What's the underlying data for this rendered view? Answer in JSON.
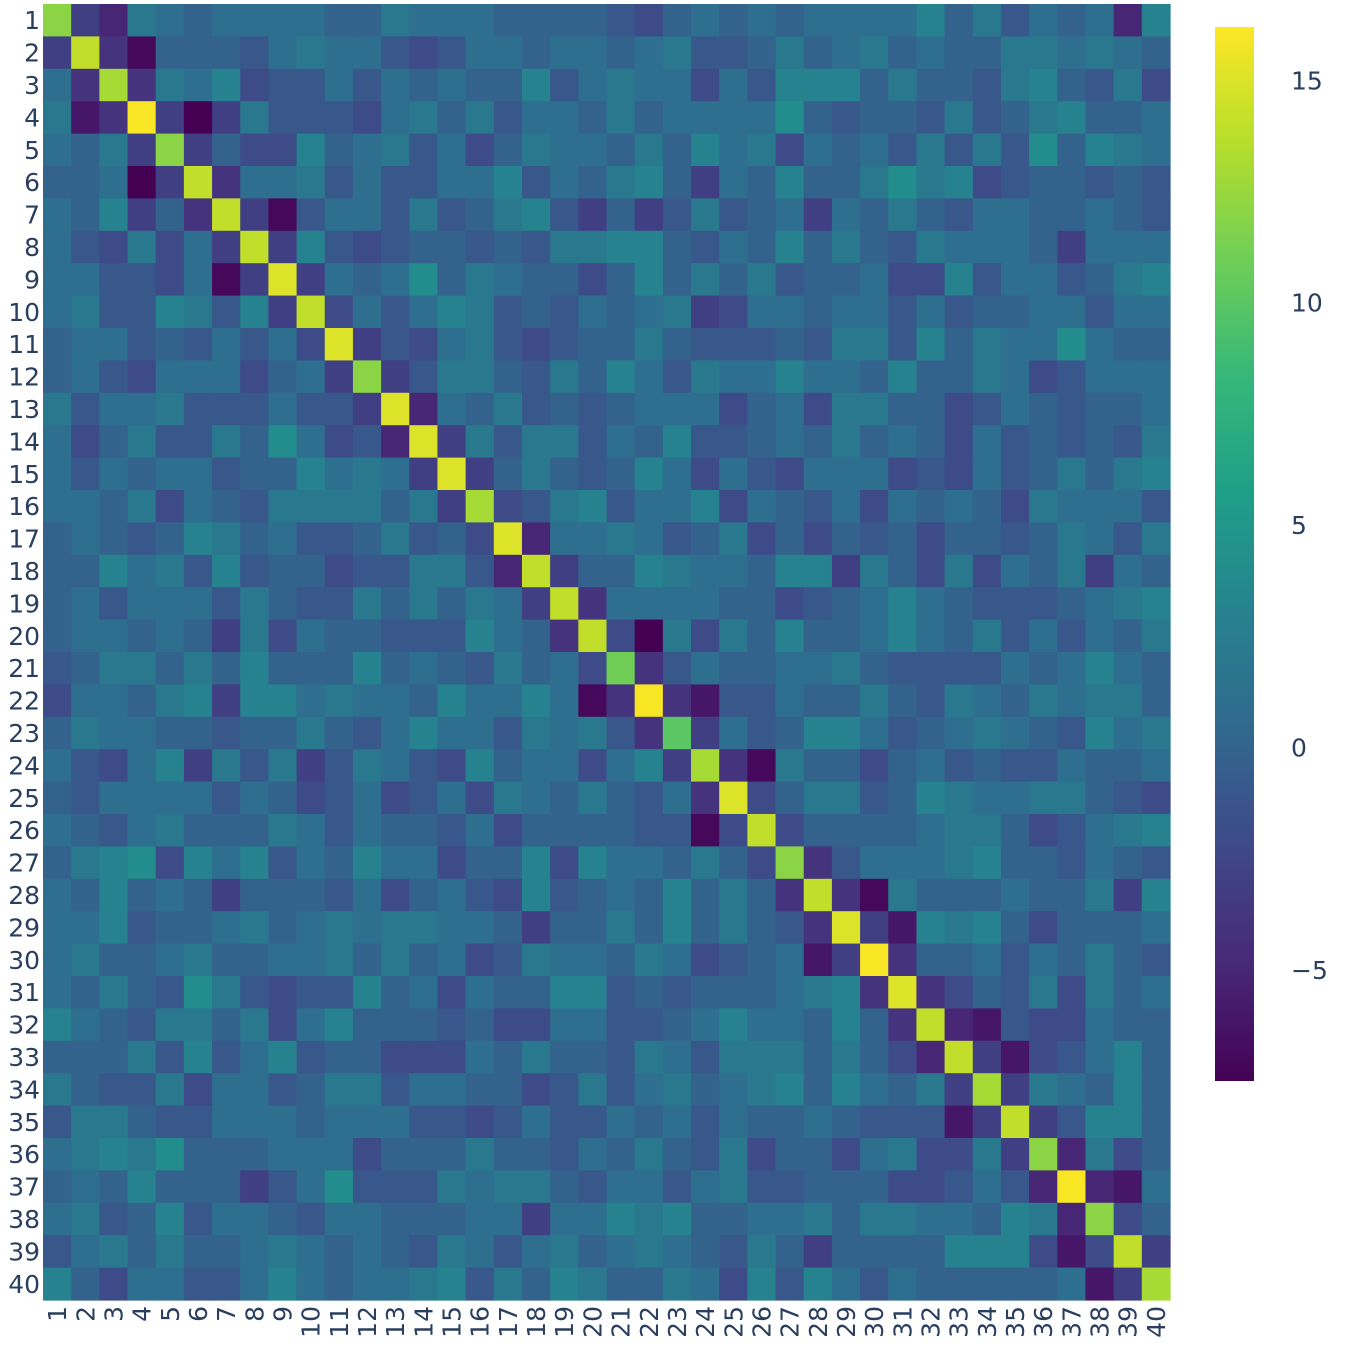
{
  "chart_data": {
    "type": "heatmap",
    "title": "",
    "xlabel": "",
    "ylabel": "",
    "x": [
      "1",
      "2",
      "3",
      "4",
      "5",
      "6",
      "7",
      "8",
      "9",
      "10",
      "11",
      "12",
      "13",
      "14",
      "15",
      "16",
      "17",
      "18",
      "19",
      "20",
      "21",
      "22",
      "23",
      "24",
      "25",
      "26",
      "27",
      "28",
      "29",
      "30",
      "31",
      "32",
      "33",
      "34",
      "35",
      "36",
      "37",
      "38",
      "39",
      "40"
    ],
    "y": [
      "1",
      "2",
      "3",
      "4",
      "5",
      "6",
      "7",
      "8",
      "9",
      "10",
      "11",
      "12",
      "13",
      "14",
      "15",
      "16",
      "17",
      "18",
      "19",
      "20",
      "21",
      "22",
      "23",
      "24",
      "25",
      "26",
      "27",
      "28",
      "29",
      "30",
      "31",
      "32",
      "33",
      "34",
      "35",
      "36",
      "37",
      "38",
      "39",
      "40"
    ],
    "colorscale": "Viridis",
    "zmin": -7.5,
    "zmax": 16.2,
    "colorbar_ticks": [
      15,
      10,
      5,
      0,
      -5
    ],
    "colorbar_tick_labels": [
      "15",
      "10",
      "5",
      "0",
      "−5"
    ],
    "diagonal": [
      12,
      14,
      13,
      16,
      12,
      14,
      14,
      14,
      15,
      14,
      15,
      12,
      15,
      15,
      15,
      13,
      15,
      14,
      14,
      14,
      11,
      16,
      10,
      13,
      15,
      14,
      12,
      14,
      15,
      16,
      15,
      14,
      14,
      13,
      14,
      12,
      16,
      12,
      14,
      13
    ],
    "notable_off_diagonal": [
      {
        "row": 1,
        "col": 3,
        "value": -5
      },
      {
        "row": 1,
        "col": 39,
        "value": -5
      },
      {
        "row": 2,
        "col": 4,
        "value": -7
      },
      {
        "row": 4,
        "col": 2,
        "value": -6
      },
      {
        "row": 4,
        "col": 6,
        "value": -7.5
      },
      {
        "row": 6,
        "col": 4,
        "value": -7.5
      },
      {
        "row": 7,
        "col": 9,
        "value": -7
      },
      {
        "row": 9,
        "col": 7,
        "value": -7
      },
      {
        "row": 9,
        "col": 14,
        "value": 4
      },
      {
        "row": 14,
        "col": 9,
        "value": 4
      },
      {
        "row": 20,
        "col": 22,
        "value": -7.5
      },
      {
        "row": 22,
        "col": 20,
        "value": -7
      },
      {
        "row": 22,
        "col": 24,
        "value": -6
      },
      {
        "row": 24,
        "col": 26,
        "value": -7
      },
      {
        "row": 26,
        "col": 24,
        "value": -7
      },
      {
        "row": 28,
        "col": 30,
        "value": -7
      },
      {
        "row": 29,
        "col": 31,
        "value": -6
      },
      {
        "row": 30,
        "col": 28,
        "value": -6
      },
      {
        "row": 32,
        "col": 34,
        "value": -6
      },
      {
        "row": 33,
        "col": 35,
        "value": -6
      },
      {
        "row": 35,
        "col": 33,
        "value": -6
      },
      {
        "row": 37,
        "col": 39,
        "value": -6
      },
      {
        "row": 39,
        "col": 37,
        "value": -6
      },
      {
        "row": 40,
        "col": 38,
        "value": -6
      }
    ]
  }
}
